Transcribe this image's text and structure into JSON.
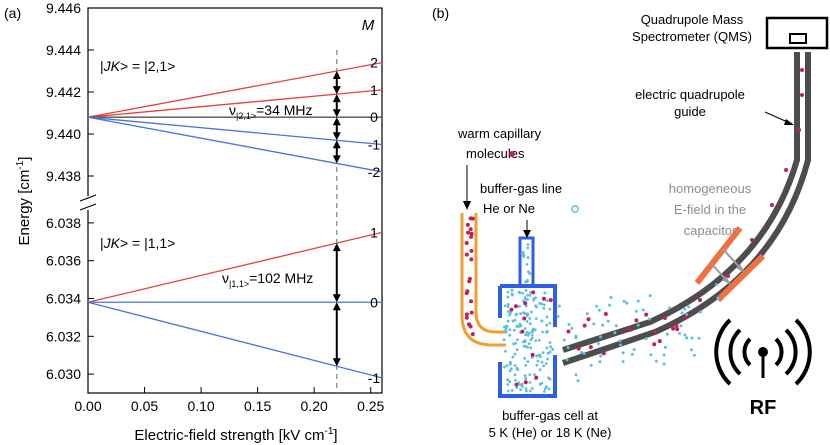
{
  "panel_a": {
    "label": "(a)",
    "x_label": "Electric-field strength [kV cm",
    "x_label_sup": "-1",
    "x_label_end": "]",
    "y_label": "Energy [cm",
    "y_label_sup": "-1",
    "y_label_end": "]",
    "m_header": "M",
    "state_upper_pre": "|",
    "state_upper_it": "JK",
    "state_upper_post": "> = |2,1>",
    "state_lower_pre": "|",
    "state_lower_it": "JK",
    "state_lower_post": "> = |1,1>",
    "nu_upper_main": "ν",
    "nu_upper_sub": "|2,1>",
    "nu_upper_val": "=34 MHz",
    "nu_lower_main": "ν",
    "nu_lower_sub": "|1,1>",
    "nu_lower_val": "=102 MHz",
    "upper_m_labels": [
      "2",
      "1",
      "0",
      "-1",
      "-2"
    ],
    "lower_m_labels": [
      "1",
      "0",
      "-1"
    ]
  },
  "panel_b": {
    "label": "(b)",
    "qms_line1": "Quadrupole Mass",
    "qms_line2": "Spectrometer (QMS)",
    "guide_line1": "electric quadrupole",
    "guide_line2": "guide",
    "warm_line1": "warm capillary",
    "warm_line2": "molecules",
    "buffer_line1": "buffer-gas line",
    "buffer_line2": "He or Ne",
    "homo_line1": "homogeneous",
    "homo_line2": "E-field in the",
    "homo_line3": "capacitor",
    "cell_line1": "buffer-gas cell at",
    "cell_line2": "5 K (He) or 18 K (Ne)",
    "rf_label": "RF"
  },
  "chart_data": {
    "type": "line",
    "title": "",
    "xlabel": "Electric-field strength [kV cm-1]",
    "ylabel": "Energy [cm-1]",
    "x_ticks": [
      "0.00",
      "0.05",
      "0.10",
      "0.15",
      "0.20",
      "0.25"
    ],
    "xlim": [
      0,
      0.26
    ],
    "upper_ylim": [
      9.437,
      9.446
    ],
    "upper_ticks": [
      "9.438",
      "9.440",
      "9.442",
      "9.444",
      "9.446"
    ],
    "lower_ylim": [
      6.029,
      6.039
    ],
    "lower_ticks": [
      "6.030",
      "6.032",
      "6.034",
      "6.036",
      "6.038"
    ],
    "marker_field": 0.22,
    "series": [
      {
        "name": "|2,1> M=2",
        "x": [
          0,
          0.26
        ],
        "y": [
          9.4408,
          9.4434
        ],
        "color": "#e8413c"
      },
      {
        "name": "|2,1> M=1",
        "x": [
          0,
          0.26
        ],
        "y": [
          9.4408,
          9.4421
        ],
        "color": "#e8413c"
      },
      {
        "name": "|2,1> M=0",
        "x": [
          0,
          0.26
        ],
        "y": [
          9.4408,
          9.4408
        ],
        "color": "#555555"
      },
      {
        "name": "|2,1> M=-1",
        "x": [
          0,
          0.26
        ],
        "y": [
          9.4408,
          9.4395
        ],
        "color": "#4a74d8"
      },
      {
        "name": "|2,1> M=-2",
        "x": [
          0,
          0.26
        ],
        "y": [
          9.4408,
          9.4382
        ],
        "color": "#4a74d8"
      },
      {
        "name": "|1,1> M=1",
        "x": [
          0,
          0.26
        ],
        "y": [
          6.0338,
          6.0375
        ],
        "color": "#e8413c"
      },
      {
        "name": "|1,1> M=0",
        "x": [
          0,
          0.26
        ],
        "y": [
          6.0338,
          6.0338
        ],
        "color": "#4a74d8"
      },
      {
        "name": "|1,1> M=-1",
        "x": [
          0,
          0.26
        ],
        "y": [
          6.0338,
          6.0298
        ],
        "color": "#4a74d8"
      }
    ]
  },
  "colors": {
    "red": "#e8413c",
    "blue": "#4a74d8",
    "guide": "#4d4d4d",
    "cell": "#2f5ee6",
    "capillary": "#f0a030",
    "capacitor": "#f07040",
    "molecule": "#c41e5a",
    "gas": "#5bc0e0"
  }
}
